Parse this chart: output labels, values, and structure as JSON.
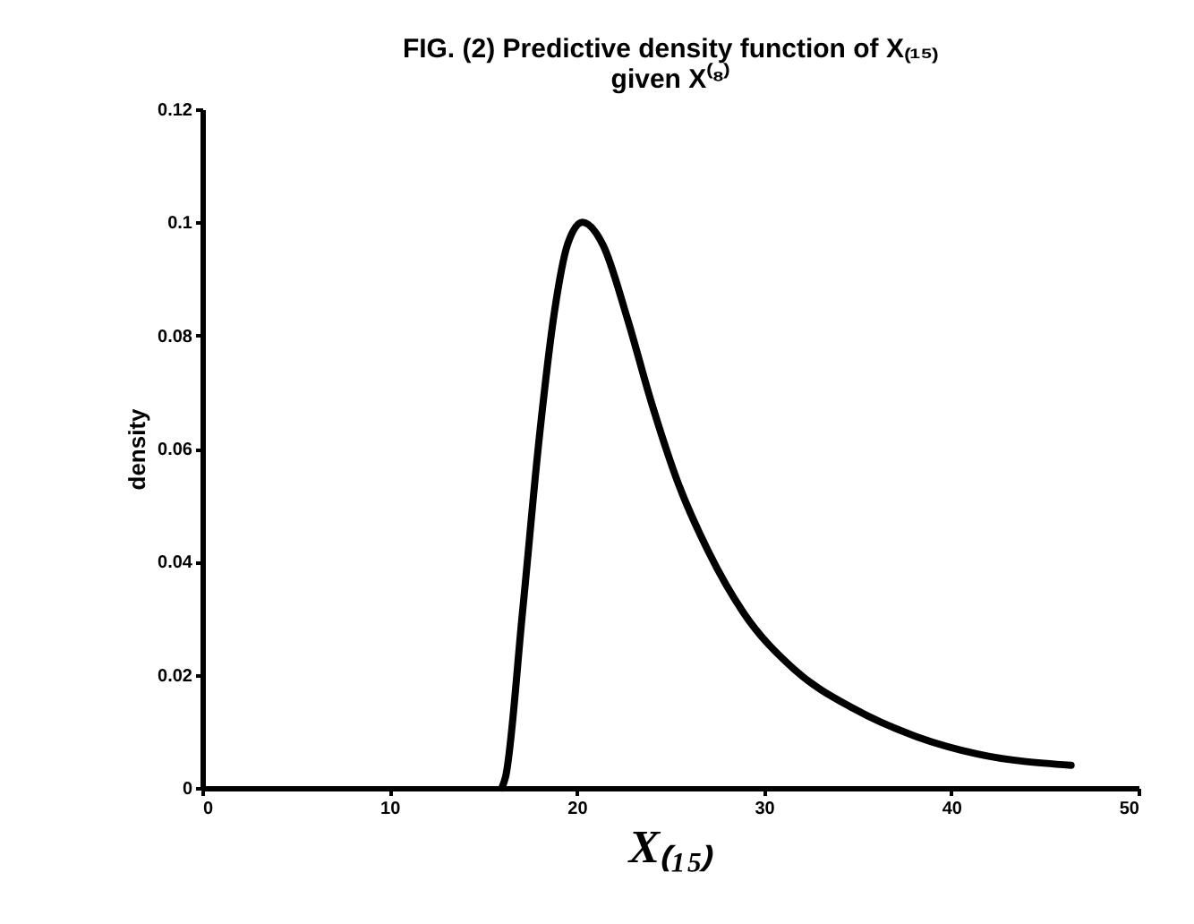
{
  "chart_data": {
    "type": "line",
    "title": "FIG. (2) Predictive density function of X₍₁₅₎ given X⁽⁸⁾",
    "xlabel": "X₍₁₅₎",
    "ylabel": "density",
    "series": [
      {
        "color": "#000000",
        "x": [
          16.0,
          16.2,
          17.1,
          18.0,
          18.8,
          19.5,
          20.3,
          21.4,
          22.7,
          24.0,
          25.4,
          27.0,
          28.9,
          31.6,
          34.8,
          38.2,
          41.4,
          46.4
        ],
        "values": [
          0,
          0.002,
          0.031,
          0.062,
          0.084,
          0.096,
          0.1,
          0.096,
          0.083,
          0.068,
          0.054,
          0.042,
          0.031,
          0.021,
          0.014,
          0.009,
          0.006,
          0.004
        ]
      }
    ],
    "xlim": [
      0,
      50
    ],
    "xticks": [
      0,
      10,
      20,
      30,
      40,
      50
    ],
    "ylim": [
      0,
      0.12
    ],
    "yticks": [
      0,
      0.02,
      0.04,
      0.06,
      0.08,
      0.1,
      0.12
    ],
    "grid": false,
    "marker": "none",
    "line_style": "solid"
  }
}
